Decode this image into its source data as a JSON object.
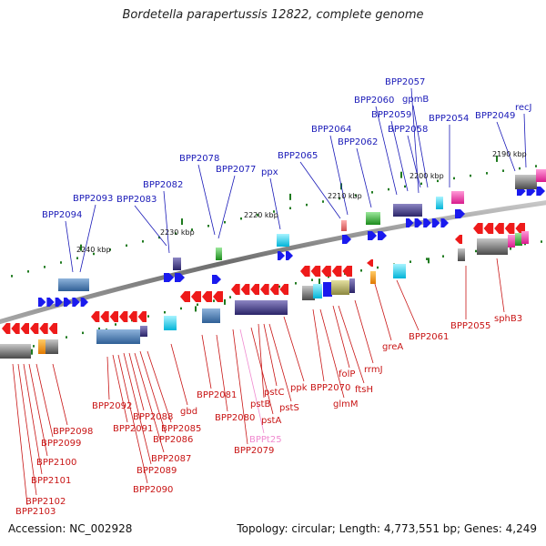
{
  "title": "Bordetella parapertussis 12822, complete genome",
  "footer": {
    "accession": "Accession: NC_002928",
    "summary": "Topology: circular; Length: 4,773,551 bp; Genes: 4,249"
  },
  "colors": {
    "forward": "#1a1aee",
    "reverse": "#ee1a1a",
    "forward_label": "#1a1ab8",
    "reverse_label": "#c81414",
    "pseudo_label": "#f08ad0",
    "tick": "#1e7a1e",
    "backbone": "#8a8a8a"
  },
  "scale_labels": [
    "2240 kbp",
    "2230 kbp",
    "2220 kbp",
    "2210 kbp",
    "2200 kbp",
    "2190 kbp"
  ],
  "top_labels": [
    "BPP2094",
    "BPP2093",
    "BPP2083",
    "BPP2082",
    "BPP2078",
    "BPP2077",
    "ppx",
    "BPP2065",
    "BPP2064",
    "BPP2062",
    "BPP2060",
    "BPP2059",
    "BPP2058",
    "gpmB",
    "BPP2057",
    "BPP2054",
    "BPP2049",
    "recJ"
  ],
  "bottom_labels": [
    "BPP2103",
    "BPP2102",
    "BPP2101",
    "BPP2100",
    "BPP2099",
    "BPP2098",
    "BPP2092",
    "BPP2091",
    "BPP2090",
    "BPP2089",
    "BPP2088",
    "BPP2087",
    "BPP2086",
    "BPP2085",
    "gbd",
    "BPP2081",
    "BPP2080",
    "BPP2079",
    "BPPt25",
    "pstA",
    "pstB",
    "pstC",
    "pstS",
    "ppk",
    "BPP2070",
    "glmM",
    "folP",
    "ftsH",
    "rrmJ",
    "greA",
    "BPP2061",
    "BPP2055",
    "sphB3"
  ]
}
